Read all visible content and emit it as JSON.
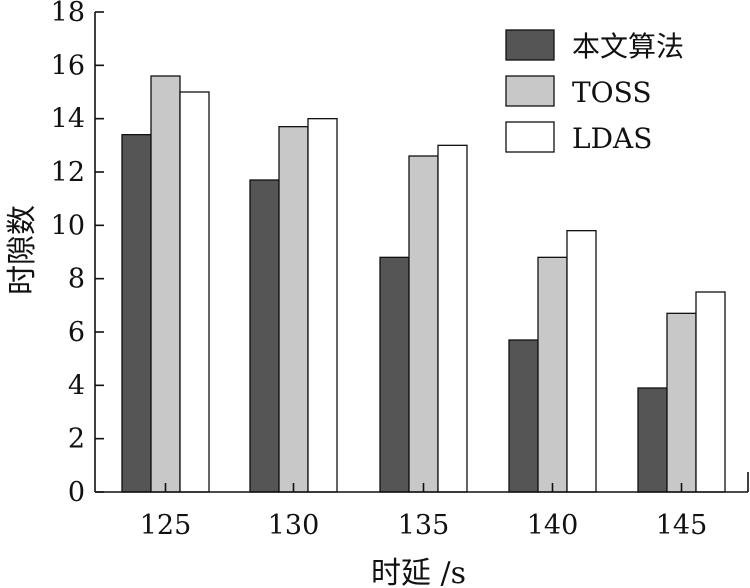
{
  "chart_data": {
    "type": "bar",
    "title": "",
    "xlabel": "时延 /s",
    "ylabel": "时隙数",
    "categories": [
      "125",
      "130",
      "135",
      "140",
      "145"
    ],
    "ylim": [
      0,
      18
    ],
    "yticks": [
      0,
      2,
      4,
      6,
      8,
      10,
      12,
      14,
      16,
      18
    ],
    "grid": false,
    "legend_position": "top-right",
    "series": [
      {
        "name": "本文算法",
        "values": [
          13.4,
          11.7,
          8.8,
          5.7,
          3.9
        ],
        "color": "#555555"
      },
      {
        "name": "TOSS",
        "values": [
          15.6,
          13.7,
          12.6,
          8.8,
          6.7
        ],
        "color": "#c8c8c8"
      },
      {
        "name": "LDAS",
        "values": [
          15.0,
          14.0,
          13.0,
          9.8,
          7.5
        ],
        "color": "#ffffff"
      }
    ]
  }
}
